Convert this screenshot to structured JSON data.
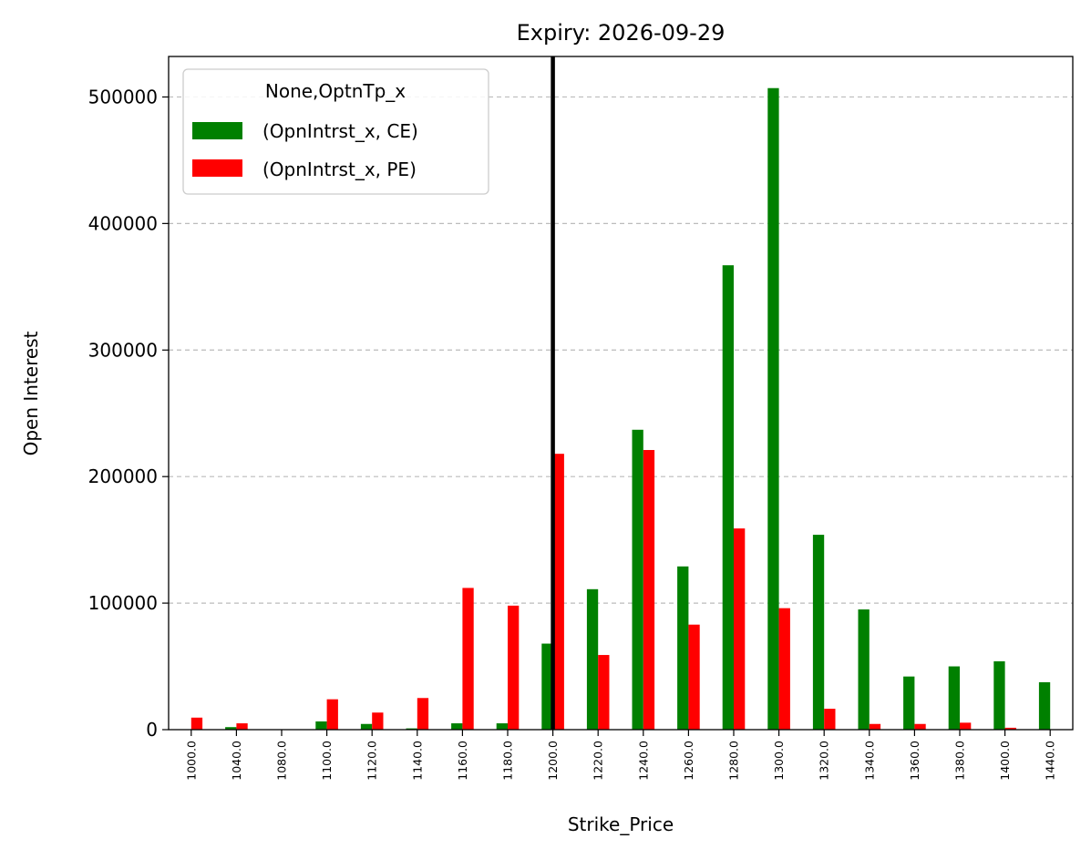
{
  "chart_data": {
    "type": "bar",
    "title": "Expiry: 2026-09-29",
    "xlabel": "Strike_Price",
    "ylabel": "Open Interest",
    "categories": [
      "1000.0",
      "1040.0",
      "1080.0",
      "1100.0",
      "1120.0",
      "1140.0",
      "1160.0",
      "1180.0",
      "1200.0",
      "1220.0",
      "1240.0",
      "1260.0",
      "1280.0",
      "1300.0",
      "1320.0",
      "1340.0",
      "1360.0",
      "1380.0",
      "1400.0",
      "1440.0"
    ],
    "series": [
      {
        "name": "(OpnIntrst_x, CE)",
        "color": "#008000",
        "values": [
          0,
          2000,
          0,
          6500,
          4500,
          1000,
          5000,
          5000,
          68000,
          111000,
          237000,
          129000,
          367000,
          507000,
          154000,
          95000,
          42000,
          50000,
          54000,
          37500
        ]
      },
      {
        "name": "(OpnIntrst_x, PE)",
        "color": "#ff0000",
        "values": [
          9500,
          5000,
          0,
          24000,
          13500,
          25000,
          112000,
          98000,
          218000,
          59000,
          221000,
          83000,
          159000,
          96000,
          16500,
          4500,
          4500,
          5500,
          1500,
          0
        ]
      }
    ],
    "yticks": [
      0,
      100000,
      200000,
      300000,
      400000,
      500000
    ],
    "ytick_labels": [
      "0",
      "100000",
      "200000",
      "300000",
      "400000",
      "500000"
    ],
    "ylim": [
      0,
      532000
    ],
    "grid": "y-dashed",
    "legend": {
      "title": "None,OptnTp_x",
      "placement": "top-left"
    },
    "vline_category": "1200.0",
    "vline_color": "#000000"
  }
}
